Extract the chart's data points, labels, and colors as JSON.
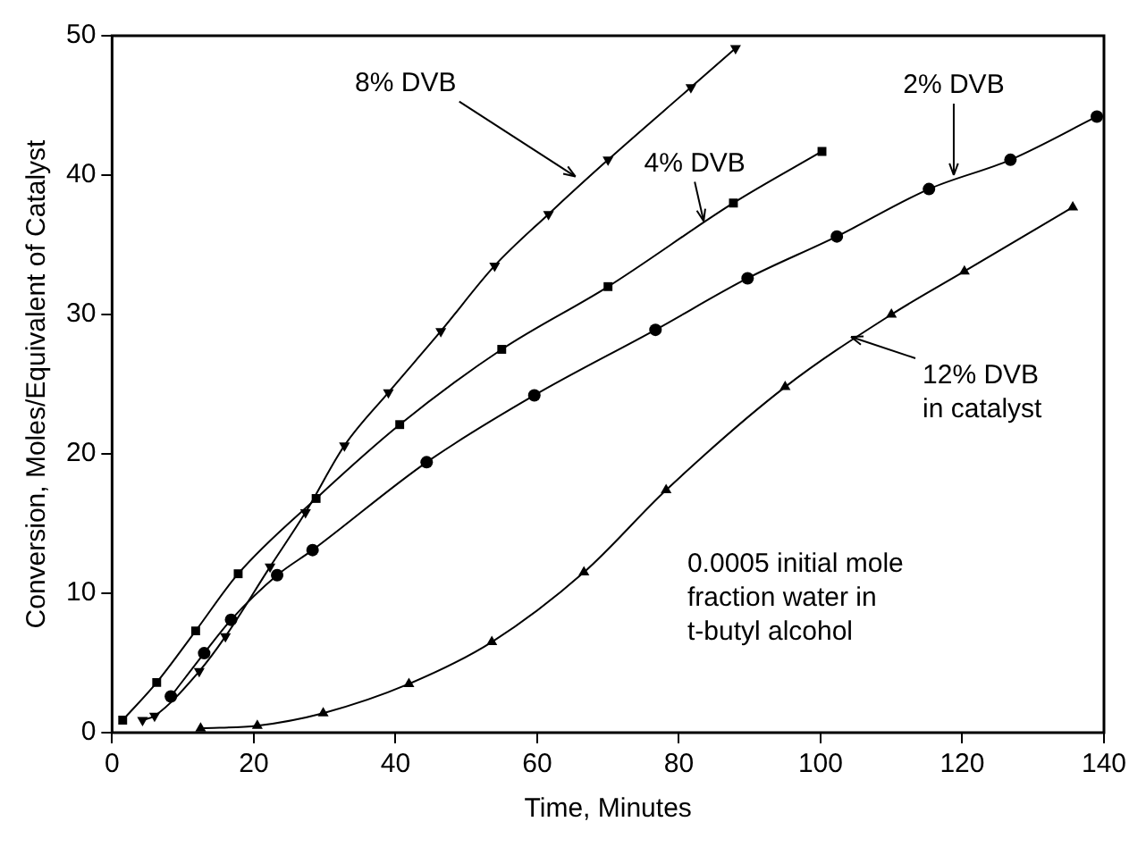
{
  "chart_data": {
    "type": "line",
    "xlabel": "Time, Minutes",
    "ylabel": "Conversion, Moles/Equivalent of Catalyst",
    "xlim": [
      0,
      140
    ],
    "xticks": [
      0,
      20,
      40,
      60,
      80,
      100,
      120,
      140
    ],
    "ylim": [
      0,
      50
    ],
    "yticks": [
      0,
      10,
      20,
      30,
      40,
      50
    ],
    "series": [
      {
        "color": "#000000",
        "marker": "triangle",
        "x": [
          4.3,
          6,
          12.3,
          16,
          22.3,
          27.3,
          32.8,
          39,
          46.4,
          54,
          61.6,
          70,
          81.7,
          88
        ],
        "values": [
          0.9,
          1.2,
          4.4,
          6.9,
          11.9,
          15.8,
          20.6,
          24.4,
          28.8,
          33.5,
          37.2,
          41.1,
          46.3,
          49.1
        ]
      },
      {
        "color": "#000000",
        "marker": "square",
        "x": [
          1.5,
          6.3,
          11.8,
          17.8,
          28.8,
          40.6,
          55,
          70,
          87.7,
          100.2
        ],
        "values": [
          0.9,
          3.6,
          7.3,
          11.4,
          16.8,
          22.1,
          27.5,
          32,
          38,
          41.7
        ]
      },
      {
        "color": "#000000",
        "marker": "circle",
        "x": [
          8.3,
          13,
          16.8,
          23.3,
          28.3,
          44.4,
          59.6,
          76.7,
          89.7,
          102.3,
          115.3,
          126.8,
          139
        ],
        "values": [
          2.6,
          5.7,
          8.1,
          11.3,
          13.1,
          19.4,
          24.2,
          28.9,
          32.6,
          35.6,
          39,
          41.1,
          44.2
        ]
      },
      {
        "color": "#000000",
        "marker": "triangle",
        "x": [
          12.5,
          20.5,
          29.8,
          41.9,
          53.6,
          66.6,
          78.2,
          95,
          110,
          120.3,
          135.6
        ],
        "values": [
          0.3,
          0.5,
          1.4,
          3.5,
          6.5,
          11.5,
          17.4,
          24.8,
          30,
          33.1,
          37.7
        ]
      }
    ],
    "annotations": [
      {
        "text": "8% DVB",
        "x": 65.4,
        "y": 39.9
      },
      {
        "text": "4% DVB",
        "x": 83.5,
        "y": 36.7
      },
      {
        "text": "2% DVB",
        "x": 118.8,
        "y": 40
      },
      {
        "text": "12% DVB\nin catalyst",
        "x": 104.3,
        "y": 28.4
      },
      "0.0005 initial mole\nfraction water in\nt-butyl alcohol"
    ]
  }
}
